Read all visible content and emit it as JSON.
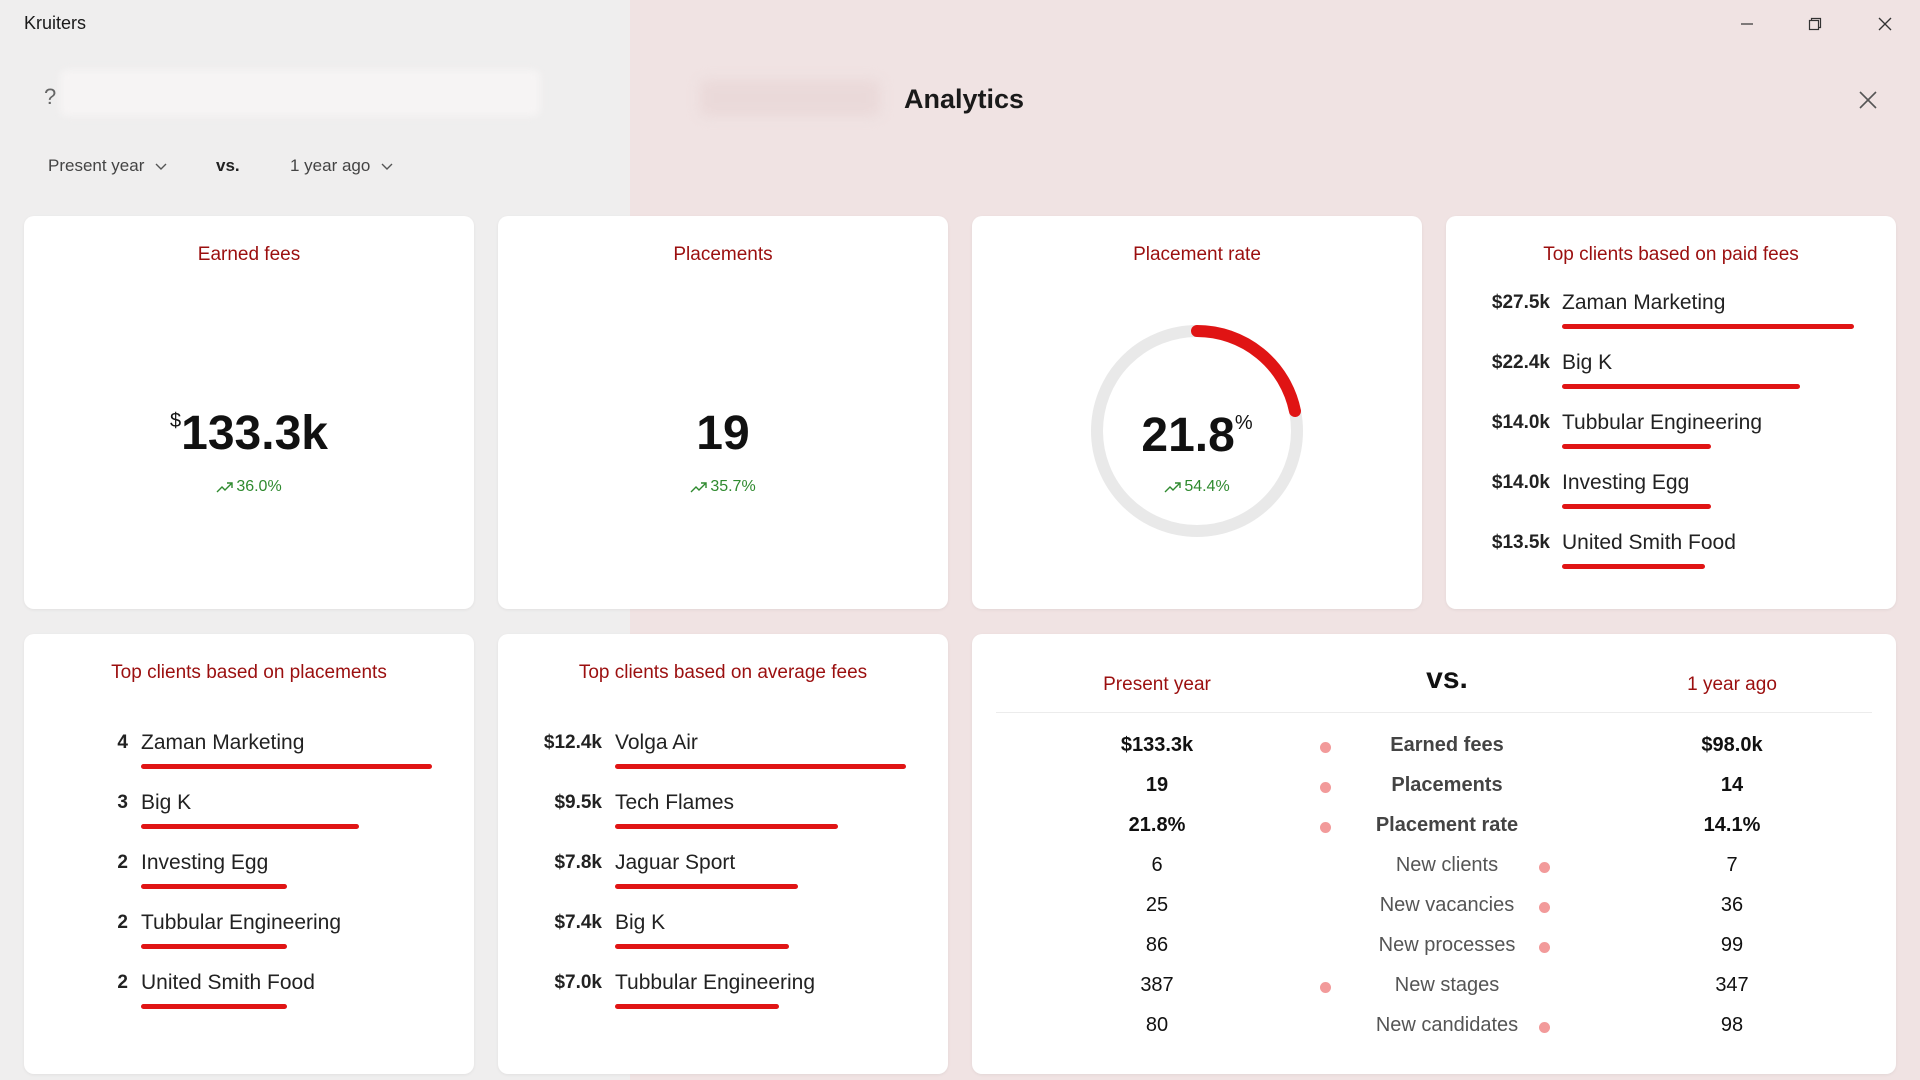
{
  "window": {
    "title": "Kruiters"
  },
  "header": {
    "title": "Analytics",
    "help_glyph": "?"
  },
  "period": {
    "current": "Present year",
    "vs": "vs.",
    "compare": "1 year ago"
  },
  "kpis": {
    "earned_fees": {
      "title": "Earned fees",
      "currency": "$",
      "value": "133.3k",
      "change": "36.0%"
    },
    "placements": {
      "title": "Placements",
      "value": "19",
      "change": "35.7%"
    },
    "placement_rate": {
      "title": "Placement rate",
      "value": "21.8",
      "unit": "%",
      "change": "54.4%",
      "fraction": 0.218
    }
  },
  "top_paid": {
    "title": "Top clients based on paid fees",
    "items": [
      {
        "amount": "$27.5k",
        "name": "Zaman Marketing",
        "value": 27.5
      },
      {
        "amount": "$22.4k",
        "name": "Big K",
        "value": 22.4
      },
      {
        "amount": "$14.0k",
        "name": "Tubbular Engineering",
        "value": 14.0
      },
      {
        "amount": "$14.0k",
        "name": "Investing Egg",
        "value": 14.0
      },
      {
        "amount": "$13.5k",
        "name": "United Smith Food",
        "value": 13.5
      }
    ]
  },
  "top_placements": {
    "title": "Top clients based on placements",
    "items": [
      {
        "amount": "4",
        "name": "Zaman Marketing",
        "value": 4
      },
      {
        "amount": "3",
        "name": "Big K",
        "value": 3
      },
      {
        "amount": "2",
        "name": "Investing Egg",
        "value": 2
      },
      {
        "amount": "2",
        "name": "Tubbular Engineering",
        "value": 2
      },
      {
        "amount": "2",
        "name": "United Smith Food",
        "value": 2
      }
    ]
  },
  "top_avg": {
    "title": "Top clients based on average fees",
    "items": [
      {
        "amount": "$12.4k",
        "name": "Volga Air",
        "value": 12.4
      },
      {
        "amount": "$9.5k",
        "name": "Tech Flames",
        "value": 9.5
      },
      {
        "amount": "$7.8k",
        "name": "Jaguar Sport",
        "value": 7.8
      },
      {
        "amount": "$7.4k",
        "name": "Big K",
        "value": 7.4
      },
      {
        "amount": "$7.0k",
        "name": "Tubbular Engineering",
        "value": 7.0
      }
    ]
  },
  "comparison": {
    "left_header": "Present year",
    "vs": "vs.",
    "right_header": "1 year ago",
    "rows": [
      {
        "label": "Earned fees",
        "left": "$133.3k",
        "right": "$98.0k",
        "winner": "left",
        "bold": true
      },
      {
        "label": "Placements",
        "left": "19",
        "right": "14",
        "winner": "left",
        "bold": true
      },
      {
        "label": "Placement rate",
        "left": "21.8%",
        "right": "14.1%",
        "winner": "left",
        "bold": true
      },
      {
        "label": "New clients",
        "left": "6",
        "right": "7",
        "winner": "right",
        "bold": false
      },
      {
        "label": "New vacancies",
        "left": "25",
        "right": "36",
        "winner": "right",
        "bold": false
      },
      {
        "label": "New processes",
        "left": "86",
        "right": "99",
        "winner": "right",
        "bold": false
      },
      {
        "label": "New stages",
        "left": "387",
        "right": "347",
        "winner": "left",
        "bold": false
      },
      {
        "label": "New candidates",
        "left": "80",
        "right": "98",
        "winner": "right",
        "bold": false
      }
    ]
  },
  "colors": {
    "accent": "#e01414",
    "title_red": "#9b0f0f",
    "positive": "#2f8a2f",
    "dot": "#f29a9a",
    "track": "#e9e9e9"
  },
  "icons": [
    "help-icon",
    "minimize-icon",
    "maximize-icon",
    "close-icon",
    "chevron-down-icon",
    "trend-up-icon"
  ]
}
